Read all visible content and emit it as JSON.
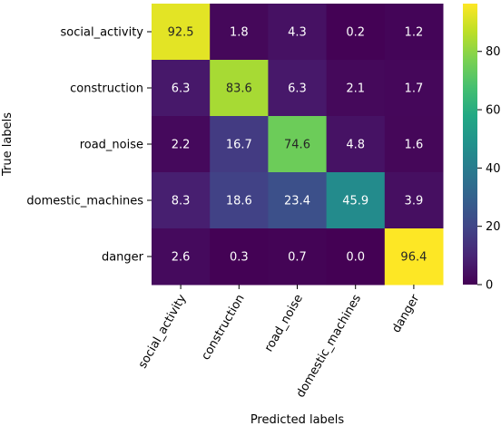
{
  "chart_data": {
    "type": "heatmap",
    "xlabel": "Predicted labels",
    "ylabel": "True labels",
    "x_categories": [
      "social_activity",
      "construction",
      "road_noise",
      "domestic_machines",
      "danger"
    ],
    "y_categories": [
      "social_activity",
      "construction",
      "road_noise",
      "domestic_machines",
      "danger"
    ],
    "values": [
      [
        92.5,
        1.8,
        4.3,
        0.2,
        1.2
      ],
      [
        6.3,
        83.6,
        6.3,
        2.1,
        1.7
      ],
      [
        2.2,
        16.7,
        74.6,
        4.8,
        1.6
      ],
      [
        8.3,
        18.6,
        23.4,
        45.9,
        3.9
      ],
      [
        2.6,
        0.3,
        0.7,
        0.0,
        96.4
      ]
    ],
    "value_labels": [
      [
        "92.5",
        "1.8",
        "4.3",
        "0.2",
        "1.2"
      ],
      [
        "6.3",
        "83.6",
        "6.3",
        "2.1",
        "1.7"
      ],
      [
        "2.2",
        "16.7",
        "74.6",
        "4.8",
        "1.6"
      ],
      [
        "8.3",
        "18.6",
        "23.4",
        "45.9",
        "3.9"
      ],
      [
        "2.6",
        "0.3",
        "0.7",
        "0.0",
        "96.4"
      ]
    ],
    "colormap": "viridis",
    "colorbar": {
      "range": [
        0,
        96.4
      ],
      "ticks": [
        0,
        20,
        40,
        60,
        80
      ],
      "tick_labels": [
        "0",
        "20",
        "40",
        "60",
        "80"
      ]
    },
    "x_tick_rotation": 60
  }
}
